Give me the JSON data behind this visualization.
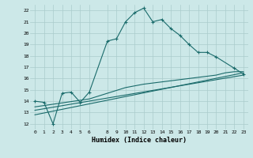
{
  "xlabel": "Humidex (Indice chaleur)",
  "bg_color": "#cce8e8",
  "grid_color": "#aacccc",
  "line_color": "#1a6b6b",
  "xlim": [
    -0.5,
    23.5
  ],
  "ylim": [
    11.5,
    22.5
  ],
  "xticks": [
    0,
    1,
    2,
    3,
    4,
    5,
    6,
    8,
    9,
    10,
    11,
    12,
    13,
    14,
    15,
    16,
    17,
    18,
    19,
    20,
    21,
    22,
    23
  ],
  "yticks": [
    12,
    13,
    14,
    15,
    16,
    17,
    18,
    19,
    20,
    21,
    22
  ],
  "series_main": {
    "x": [
      0,
      1,
      2,
      3,
      4,
      5,
      6,
      8,
      9,
      10,
      11,
      12,
      13,
      14,
      15,
      16,
      17,
      18,
      19,
      20,
      22,
      23
    ],
    "y": [
      14.0,
      13.9,
      12.0,
      14.7,
      14.8,
      13.9,
      14.8,
      19.3,
      19.5,
      21.0,
      21.8,
      22.2,
      21.0,
      21.2,
      20.4,
      19.8,
      19.0,
      18.3,
      18.3,
      17.9,
      16.9,
      16.4
    ]
  },
  "series_line1": {
    "x": [
      0,
      23
    ],
    "y": [
      12.8,
      16.5
    ]
  },
  "series_line2": {
    "x": [
      0,
      23
    ],
    "y": [
      13.2,
      16.3
    ]
  },
  "series_curve": {
    "x": [
      0,
      6,
      10,
      12,
      14,
      16,
      18,
      20,
      21,
      22,
      23
    ],
    "y": [
      13.5,
      14.2,
      15.2,
      15.5,
      15.7,
      15.9,
      16.1,
      16.3,
      16.5,
      16.6,
      16.6
    ]
  }
}
